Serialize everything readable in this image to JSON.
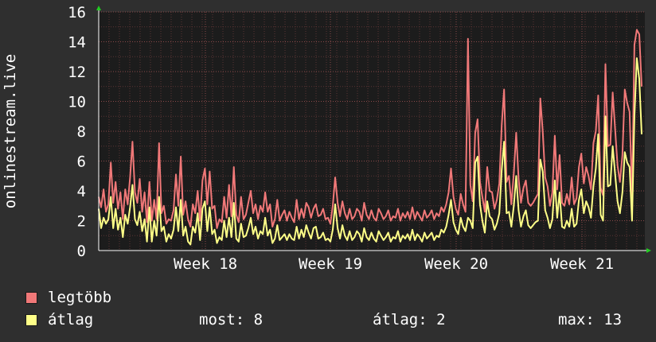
{
  "chart_data": {
    "type": "line",
    "ylabel": "onlinestream.live",
    "ylim": [
      0,
      16
    ],
    "yticks": [
      0,
      2,
      4,
      6,
      8,
      10,
      12,
      14,
      16
    ],
    "x_tick_labels": [
      "Week 18",
      "Week 19",
      "Week 20",
      "Week 21"
    ],
    "grid": true,
    "series": [
      {
        "name": "legtöbb",
        "color": "#f07878",
        "values": [
          3.6,
          2.9,
          4.1,
          2.6,
          3.1,
          5.9,
          3.2,
          4.6,
          2.8,
          3.9,
          2.1,
          4.1,
          3.1,
          4.9,
          7.3,
          3.9,
          3.2,
          4.8,
          2.6,
          3.9,
          1.9,
          4.6,
          2.0,
          3.4,
          2.1,
          7.2,
          2.5,
          3.0,
          1.8,
          2.1,
          2.0,
          2.7,
          5.1,
          3.0,
          6.3,
          2.4,
          3.3,
          2.1,
          1.6,
          3.1,
          2.5,
          4.0,
          2.0,
          4.7,
          5.5,
          3.1,
          5.3,
          2.8,
          3.0,
          1.5,
          2.1,
          1.9,
          3.6,
          2.2,
          4.4,
          2.3,
          5.6,
          2.4,
          1.9,
          3.6,
          2.1,
          2.4,
          3.2,
          4.0,
          2.5,
          3.1,
          2.1,
          3.0,
          2.6,
          3.9,
          2.6,
          3.1,
          1.6,
          2.1,
          3.4,
          2.0,
          2.4,
          2.7,
          2.0,
          2.6,
          2.2,
          1.9,
          3.4,
          2.1,
          2.8,
          2.2,
          3.2,
          2.9,
          2.2,
          2.8,
          3.1,
          2.3,
          2.4,
          2.8,
          2.1,
          2.2,
          1.8,
          3.0,
          4.9,
          3.2,
          2.3,
          3.3,
          2.5,
          2.1,
          2.8,
          2.1,
          2.3,
          2.8,
          2.6,
          2.0,
          3.2,
          2.4,
          2.1,
          2.7,
          2.2,
          2.0,
          2.8,
          2.5,
          2.1,
          2.3,
          2.7,
          2.0,
          2.3,
          2.2,
          2.8,
          2.0,
          2.5,
          2.2,
          2.6,
          2.1,
          2.9,
          2.1,
          2.6,
          2.3,
          2.0,
          2.7,
          2.2,
          2.4,
          2.7,
          2.1,
          2.5,
          2.3,
          2.9,
          2.6,
          3.1,
          3.9,
          5.5,
          3.6,
          2.8,
          2.4,
          3.8,
          3.1,
          2.6,
          14.2,
          4.4,
          3.3,
          7.9,
          8.8,
          4.6,
          3.6,
          2.6,
          5.6,
          4.0,
          3.9,
          2.8,
          3.4,
          4.5,
          8.4,
          10.8,
          4.6,
          5.0,
          3.1,
          5.2,
          7.9,
          4.8,
          3.2,
          4.2,
          4.7,
          3.2,
          3.0,
          3.2,
          3.5,
          3.8,
          10.2,
          8.0,
          4.9,
          4.3,
          3.0,
          3.9,
          7.7,
          4.1,
          6.4,
          3.2,
          3.0,
          3.8,
          3.1,
          4.9,
          3.1,
          3.5,
          5.6,
          6.5,
          4.5,
          5.6,
          5.0,
          4.1,
          7.2,
          8.0,
          10.4,
          4.2,
          3.7,
          12.5,
          7.0,
          7.1,
          10.6,
          8.1,
          5.7,
          4.6,
          6.4,
          10.8,
          9.9,
          9.3,
          3.7,
          13.8,
          14.8,
          14.5,
          11.0
        ]
      },
      {
        "name": "átlag",
        "color": "#ffff88",
        "values": [
          2.8,
          1.5,
          2.2,
          1.8,
          2.1,
          3.6,
          1.5,
          2.8,
          1.4,
          2.2,
          0.9,
          2.4,
          1.8,
          2.9,
          4.4,
          2.1,
          1.7,
          2.6,
          1.3,
          2.1,
          0.6,
          2.9,
          0.6,
          2.0,
          1.0,
          3.6,
          1.3,
          1.6,
          0.6,
          1.1,
          0.8,
          1.4,
          2.9,
          1.3,
          3.4,
          1.0,
          1.6,
          0.6,
          0.4,
          1.6,
          1.2,
          2.5,
          0.7,
          2.8,
          3.3,
          1.3,
          2.9,
          1.1,
          1.4,
          0.5,
          0.9,
          0.7,
          2.0,
          0.9,
          2.2,
          0.9,
          3.2,
          0.8,
          0.6,
          1.8,
          0.9,
          1.0,
          1.5,
          2.2,
          1.1,
          1.6,
          0.8,
          1.3,
          1.1,
          2.2,
          1.0,
          1.4,
          0.5,
          0.8,
          1.7,
          0.7,
          0.9,
          1.1,
          0.7,
          1.1,
          0.8,
          0.7,
          1.6,
          0.8,
          1.4,
          0.9,
          1.7,
          1.2,
          0.8,
          1.5,
          1.6,
          0.8,
          0.9,
          1.2,
          0.7,
          0.8,
          0.6,
          1.4,
          3.1,
          1.5,
          0.8,
          1.7,
          1.0,
          0.7,
          1.3,
          0.7,
          0.9,
          1.3,
          1.1,
          0.6,
          1.5,
          0.9,
          0.7,
          1.2,
          0.8,
          0.6,
          1.3,
          1.0,
          0.7,
          0.9,
          1.2,
          0.6,
          0.9,
          0.8,
          1.3,
          0.6,
          1.0,
          0.8,
          1.1,
          0.7,
          1.4,
          0.7,
          1.1,
          0.9,
          0.6,
          1.2,
          0.8,
          1.0,
          1.2,
          0.7,
          1.0,
          0.9,
          1.4,
          1.2,
          1.6,
          2.4,
          3.4,
          1.9,
          1.4,
          1.1,
          2.2,
          1.6,
          1.3,
          2.2,
          2.0,
          1.5,
          5.9,
          6.3,
          3.1,
          2.0,
          1.2,
          3.3,
          2.3,
          2.1,
          1.4,
          1.8,
          2.5,
          5.4,
          7.3,
          2.5,
          2.6,
          1.6,
          3.0,
          5.0,
          2.7,
          1.6,
          2.3,
          2.7,
          1.7,
          1.5,
          1.7,
          1.9,
          2.0,
          6.1,
          5.3,
          2.7,
          2.2,
          1.5,
          2.1,
          4.7,
          2.2,
          3.9,
          1.6,
          1.5,
          2.0,
          1.6,
          2.8,
          1.6,
          1.8,
          3.4,
          4.1,
          2.5,
          3.3,
          2.9,
          2.2,
          4.3,
          5.5,
          7.8,
          2.4,
          2.0,
          9.0,
          4.3,
          4.4,
          7.0,
          5.1,
          3.3,
          2.5,
          3.9,
          6.6,
          5.9,
          5.6,
          2.0,
          9.0,
          12.9,
          11.5,
          7.8
        ]
      }
    ]
  },
  "legend": {
    "items": [
      {
        "label": "legtöbb",
        "color": "#f07878"
      },
      {
        "label": "átlag",
        "color": "#ffff88"
      }
    ]
  },
  "stats": {
    "now": "most: 8",
    "avg": "átlag: 2",
    "max": "max: 13"
  }
}
